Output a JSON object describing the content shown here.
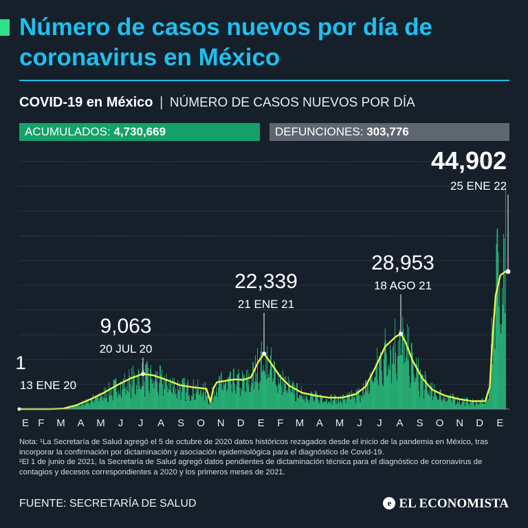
{
  "header": {
    "title": "Número de casos nuevos por día de coronavirus en México",
    "subtitle_bold": "COVID-19 en México",
    "subtitle_separator": "|",
    "subtitle_light": "NÚMERO DE CASOS NUEVOS POR DÍA"
  },
  "stats": {
    "cases_label": "ACUMULADOS:",
    "cases_value": "4,730,669",
    "deaths_label": "DEFUNCIONES:",
    "deaths_value": "303,776"
  },
  "colors": {
    "background": "#15202b",
    "title": "#1ec0ef",
    "bars": "#2ee08e",
    "trend_line": "#e8f34a",
    "cases_pill": "#14a26a",
    "deaths_pill": "#5e6670"
  },
  "chart_data": {
    "type": "bar",
    "title": "NÚMERO DE CASOS NUEVOS POR DÍA",
    "x_range": [
      "2020-01-13",
      "2022-01-31"
    ],
    "ylim": [
      0,
      50000
    ],
    "grid": true,
    "x_tick_labels": [
      "E",
      "F",
      "M",
      "A",
      "M",
      "J",
      "J",
      "A",
      "S",
      "O",
      "N",
      "D",
      "E",
      "F",
      "M",
      "A",
      "M",
      "J",
      "J",
      "A",
      "S",
      "O",
      "N",
      "D",
      "E"
    ],
    "series": [
      {
        "type": "trend_line",
        "points": [
          [
            "2020-01-13",
            0
          ],
          [
            "2020-03-01",
            0
          ],
          [
            "2020-03-20",
            100
          ],
          [
            "2020-04-10",
            800
          ],
          [
            "2020-05-01",
            2000
          ],
          [
            "2020-05-20",
            3200
          ],
          [
            "2020-06-10",
            4800
          ],
          [
            "2020-07-01",
            6200
          ],
          [
            "2020-07-20",
            7100
          ],
          [
            "2020-08-05",
            6800
          ],
          [
            "2020-08-25",
            5900
          ],
          [
            "2020-09-15",
            4800
          ],
          [
            "2020-10-05",
            4400
          ],
          [
            "2020-10-25",
            4100
          ],
          [
            "2020-10-31",
            1500
          ],
          [
            "2020-11-05",
            4300
          ],
          [
            "2020-11-10",
            5400
          ],
          [
            "2020-12-01",
            5900
          ],
          [
            "2020-12-10",
            6000
          ],
          [
            "2020-12-20",
            5900
          ],
          [
            "2021-01-01",
            6400
          ],
          [
            "2021-01-12",
            9500
          ],
          [
            "2021-01-21",
            11200
          ],
          [
            "2021-02-01",
            9200
          ],
          [
            "2021-02-15",
            6500
          ],
          [
            "2021-03-01",
            4700
          ],
          [
            "2021-03-20",
            3300
          ],
          [
            "2021-04-10",
            2700
          ],
          [
            "2021-05-01",
            2300
          ],
          [
            "2021-05-20",
            2300
          ],
          [
            "2021-06-10",
            3000
          ],
          [
            "2021-06-25",
            4500
          ],
          [
            "2021-07-10",
            8400
          ],
          [
            "2021-07-25",
            12600
          ],
          [
            "2021-08-10",
            14600
          ],
          [
            "2021-08-18",
            15200
          ],
          [
            "2021-08-25",
            13600
          ],
          [
            "2021-09-05",
            9800
          ],
          [
            "2021-09-20",
            6200
          ],
          [
            "2021-10-05",
            3900
          ],
          [
            "2021-10-25",
            2700
          ],
          [
            "2021-11-15",
            2000
          ],
          [
            "2021-12-05",
            1600
          ],
          [
            "2021-12-25",
            1600
          ],
          [
            "2022-01-01",
            4500
          ],
          [
            "2022-01-05",
            14000
          ],
          [
            "2022-01-10",
            23000
          ],
          [
            "2022-01-17",
            27000
          ],
          [
            "2022-01-25",
            27800
          ]
        ]
      }
    ],
    "annotations": [
      {
        "value": "1",
        "date": "13 ENE 20",
        "x": "2020-01-13",
        "y": 0
      },
      {
        "value": "9,063",
        "date": "20 JUL 20",
        "x": "2020-07-20",
        "y": 7100
      },
      {
        "value": "22,339",
        "date": "21 ENE 21",
        "x": "2021-01-21",
        "y": 11200
      },
      {
        "value": "28,953",
        "date": "18 AGO 21",
        "x": "2021-08-18",
        "y": 15200
      },
      {
        "value": "44,902",
        "date": "25 ENE 22",
        "x": "2022-01-25",
        "y": 23000
      }
    ]
  },
  "notes": {
    "line1": "Nota: ¹La Secretaría de Salud agregó el 5 de octubre de 2020 datos históricos rezagados desde el inicio de la pandemia en México, tras incorporar la confirmación por dictaminación y asociación epidemiológica para el diagnóstico de Covid-19.",
    "line2": "²El 1 de junio de 2021, la Secretaría de Salud agregó datos pendientes de dictaminación técnica para el diagnóstico de coronavirus de contagios y decesos correspondientes a 2020 y los primeros meses de 2021."
  },
  "footer": {
    "source": "FUENTE: SECRETARÍA DE SALUD",
    "logo_mark": "e",
    "logo_text": "EL ECONOMISTA"
  }
}
